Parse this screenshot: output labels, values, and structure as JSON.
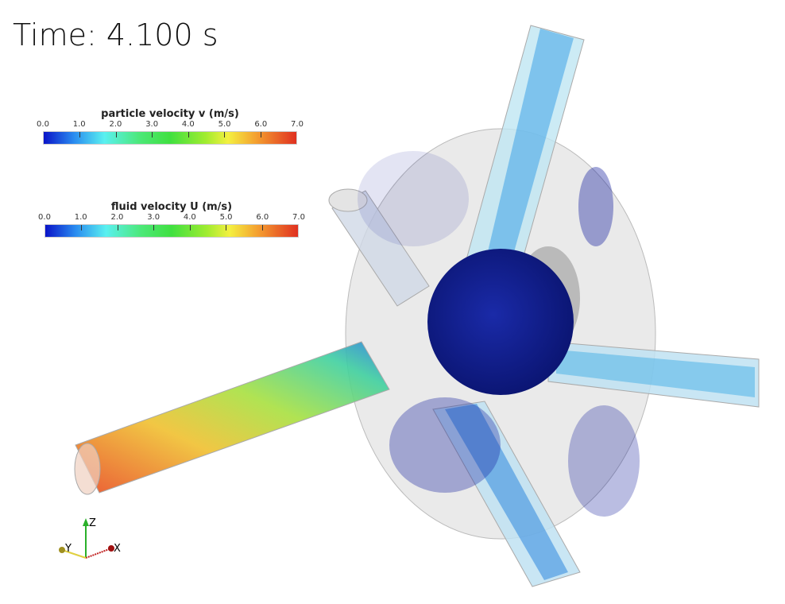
{
  "time_label": "Time: 4.100 s",
  "colorbars": [
    {
      "title": "particle velocity v (m/s)",
      "ticks": [
        "0.0",
        "1.0",
        "2.0",
        "3.0",
        "4.0",
        "5.0",
        "6.0",
        "7.0"
      ],
      "range": [
        0,
        7
      ]
    },
    {
      "title": "fluid velocity U (m/s)",
      "ticks": [
        "0.0",
        "1.0",
        "2.0",
        "3.0",
        "4.0",
        "5.0",
        "6.0",
        "7.0"
      ],
      "range": [
        0,
        7
      ]
    }
  ],
  "colormap": [
    "#0a14c8",
    "#5af0f0",
    "#40e040",
    "#f4f040",
    "#e03020"
  ],
  "axes": {
    "x": "X",
    "y": "Y",
    "z": "Z"
  }
}
